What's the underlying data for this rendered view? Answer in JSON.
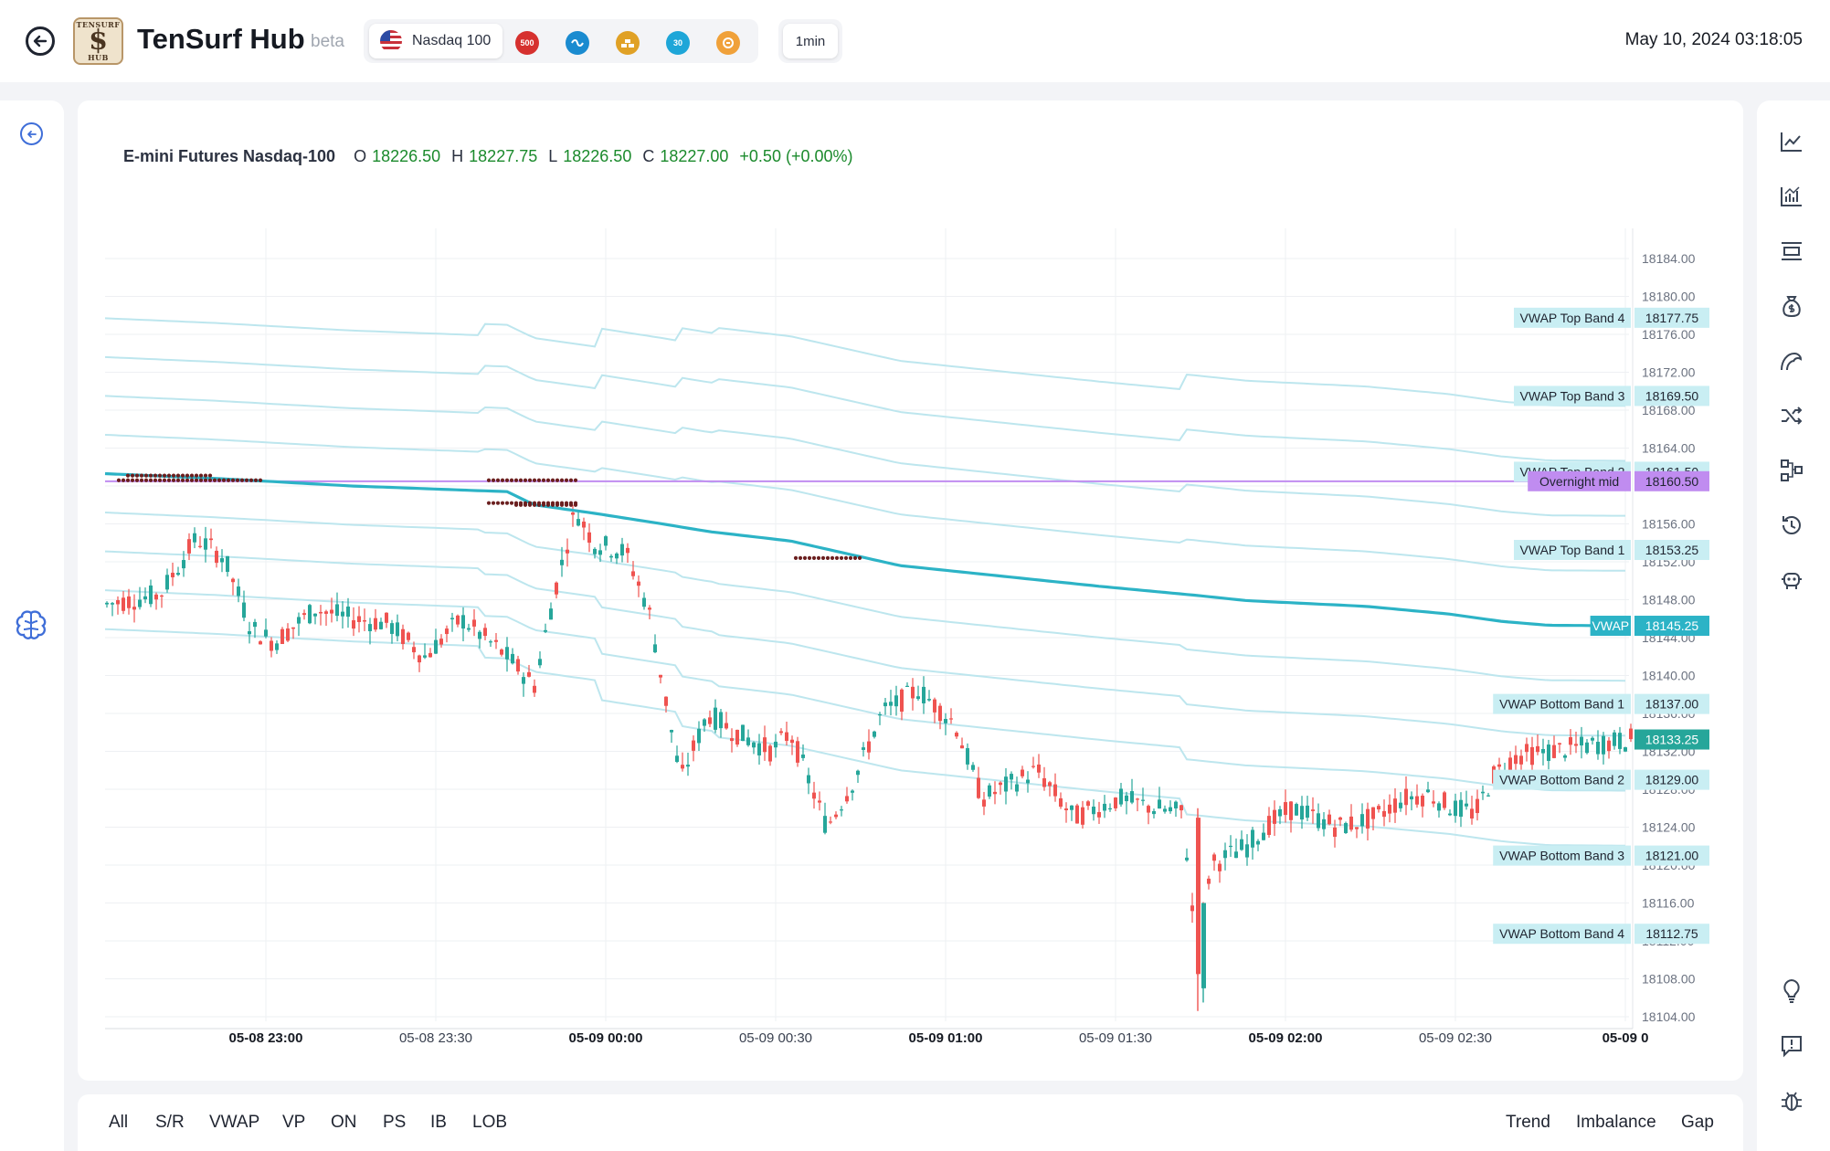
{
  "header": {
    "brand": "TenSurf Hub",
    "beta": "beta",
    "logo_top": "TENSURF",
    "logo_mark": "$",
    "logo_bottom": "HUB",
    "symbol": "Nasdaq 100",
    "symbol_icons": [
      {
        "name": "sp500-icon",
        "label": "500",
        "color": "#d6312f"
      },
      {
        "name": "oil-icon",
        "label": "",
        "color": "#1a8bd0"
      },
      {
        "name": "gold-icon",
        "label": "",
        "color": "#e0a126"
      },
      {
        "name": "dow30-icon",
        "label": "30",
        "color": "#1ea6d8"
      },
      {
        "name": "bitcoin-icon",
        "label": "",
        "color": "#f0a13a"
      }
    ],
    "timeframe": "1min",
    "datetime": "May 10, 2024 03:18:05"
  },
  "chart": {
    "symbol_name": "E-mini Futures Nasdaq-100",
    "ohlc": {
      "o_label": "O",
      "o": "18226.50",
      "h_label": "H",
      "h": "18227.75",
      "l_label": "L",
      "l": "18226.50",
      "c_label": "C",
      "c": "18227.00",
      "change": "+0.50 (+0.00%)"
    }
  },
  "chart_data": {
    "type": "candlestick",
    "y_ticks": [
      "18184.00",
      "18180.00",
      "18176.00",
      "18172.00",
      "18168.00",
      "18164.00",
      "18160.00",
      "18156.00",
      "18152.00",
      "18148.00",
      "18144.00",
      "18140.00",
      "18136.00",
      "18132.00",
      "18128.00",
      "18124.00",
      "18120.00",
      "18116.00",
      "18112.00",
      "18108.00",
      "18104.00"
    ],
    "x_ticks": [
      {
        "label": "05-08 23:00",
        "bold": true
      },
      {
        "label": "05-08 23:30",
        "bold": false
      },
      {
        "label": "05-09 00:00",
        "bold": true
      },
      {
        "label": "05-09 00:30",
        "bold": false
      },
      {
        "label": "05-09 01:00",
        "bold": true
      },
      {
        "label": "05-09 01:30",
        "bold": false
      },
      {
        "label": "05-09 02:00",
        "bold": true
      },
      {
        "label": "05-09 02:30",
        "bold": false
      },
      {
        "label": "05-09 0",
        "bold": true
      }
    ],
    "levels": [
      {
        "name": "VWAP Top Band 4",
        "value": "18177.75",
        "kind": "band"
      },
      {
        "name": "VWAP Top Band 3",
        "value": "18169.50",
        "kind": "band"
      },
      {
        "name": "VWAP Top Band 2",
        "value": "18161.50",
        "kind": "band"
      },
      {
        "name": "Overnight mid",
        "value": "18160.50",
        "kind": "overnight"
      },
      {
        "name": "VWAP Top Band 1",
        "value": "18153.25",
        "kind": "band"
      },
      {
        "name": "VWAP",
        "value": "18145.25",
        "kind": "vwap"
      },
      {
        "name": "VWAP Bottom Band 1",
        "value": "18137.00",
        "kind": "band"
      },
      {
        "name": "VWAP Bottom Band 2",
        "value": "18129.00",
        "kind": "band"
      },
      {
        "name": "VWAP Bottom Band 3",
        "value": "18121.00",
        "kind": "band"
      },
      {
        "name": "VWAP Bottom Band 4",
        "value": "18112.75",
        "kind": "band"
      }
    ],
    "last_price": "18133.25",
    "colors": {
      "up": "#26a69a",
      "down": "#ef5350",
      "vwap": "#2cb3c6",
      "band": "#bde6ee",
      "overnight": "#c08cf0",
      "band_label": "#c9eef3",
      "vwap_label": "#2cb3c6",
      "last_price": "#26a69a"
    }
  },
  "right_rail": {
    "icons": [
      "trend-chart-icon",
      "bar-analysis-icon",
      "layers-icon",
      "money-bag-icon",
      "wave-icon",
      "shuffle-icon",
      "nodes-icon",
      "history-icon",
      "bot-icon",
      "lightbulb-icon",
      "feedback-icon",
      "bug-icon"
    ]
  },
  "bottom_tabs": {
    "left": [
      "All",
      "S/R",
      "VWAP",
      "VP",
      "ON",
      "PS",
      "IB",
      "LOB"
    ],
    "right": [
      "Trend",
      "Imbalance",
      "Gap"
    ]
  }
}
